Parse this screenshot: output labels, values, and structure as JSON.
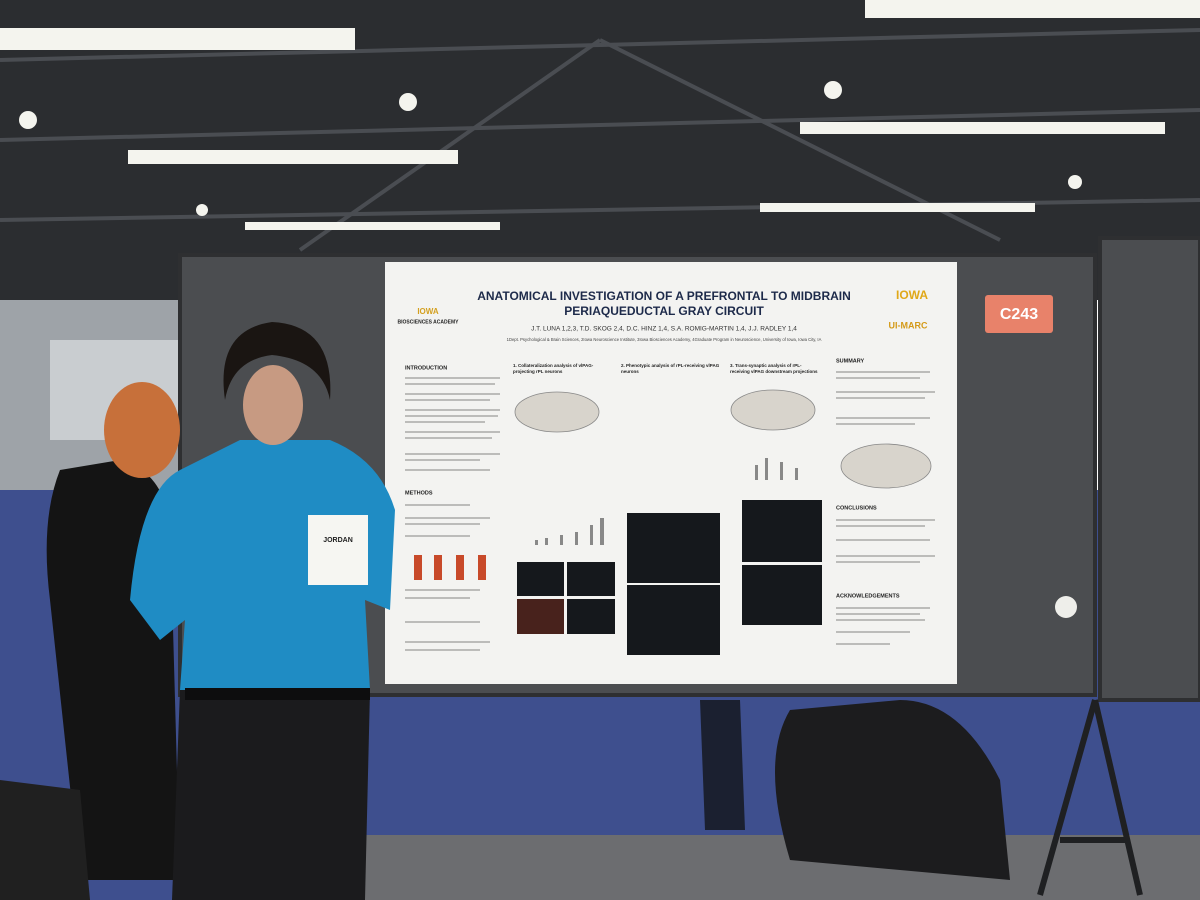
{
  "poster": {
    "title_lines": [
      "ANATOMICAL INVESTIGATION OF A PREFRONTAL TO MIDBRAIN",
      "PERIAQUEDUCTAL GRAY CIRCUIT"
    ],
    "authors": "J.T. LUNA 1,2,3, T.D. SKOG 2,4, D.C. HINZ 1,4, S.A. ROMIG-MARTIN 1,4, J.J. RADLEY 1,4",
    "affiliation": "1Dept. Psychological & Brain Sciences, 2Iowa Neuroscience Institute, 3Iowa Biosciences Academy, 4Graduate Program in Neuroscience, University of Iowa, Iowa City, IA",
    "logos": {
      "left_top": "IOWA",
      "left_bottom": "BIOSCIENCES ACADEMY",
      "right_top": "IOWA",
      "right_bottom": "UI-MARC"
    },
    "sections": [
      "INTRODUCTION",
      "METHODS",
      "SUMMARY",
      "CONCLUSIONS",
      "ACKNOWLEDGEMENTS"
    ],
    "panels": [
      [
        "1. Collateralization analysis of vlPAG-",
        "projecting rPL neurons"
      ],
      [
        "2. Phenotypic analysis of rPL-receiving vlPAG",
        "neurons"
      ],
      [
        "3. Trans-synaptic analysis of rPL-",
        "receiving vlPAG downstream projections"
      ]
    ]
  },
  "board_number": "C243",
  "badge_name": "JORDAN"
}
